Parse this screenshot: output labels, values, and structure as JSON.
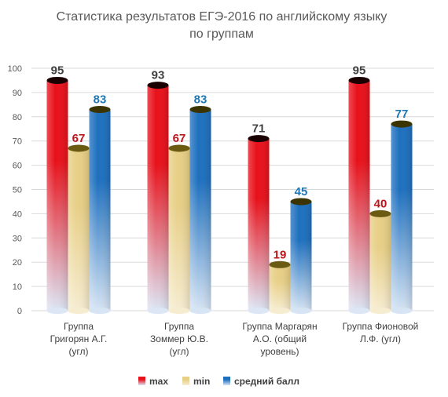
{
  "chart_data": {
    "type": "bar",
    "title": "Статистика результатов ЕГЭ-2016 по английскому языку по группам",
    "title_lines": [
      "Статистика результатов ЕГЭ-2016 по английскому языку",
      "по группам"
    ],
    "categories": [
      [
        "Группа",
        "Григорян А.Г.",
        "(угл)"
      ],
      [
        "Группа",
        "Зоммер Ю.В.",
        "(угл)"
      ],
      [
        "Группа Маргарян",
        "А.О. (общий",
        "уровень)"
      ],
      [
        "Группа Фионовой",
        "Л.Ф. (угл)"
      ]
    ],
    "series": [
      {
        "name": "max",
        "values": [
          95,
          93,
          71,
          95
        ],
        "color_top": "#e8101a",
        "color_bottom": "#dce6f5",
        "cap": "#1a0000",
        "label_color": "#404040"
      },
      {
        "name": "min",
        "values": [
          67,
          67,
          19,
          40
        ],
        "color_top": "#e8cf86",
        "color_bottom": "#f6ecd0",
        "cap": "#6b5a12",
        "label_color": "#c0141c"
      },
      {
        "name": "средний балл",
        "values": [
          83,
          83,
          45,
          77
        ],
        "color_top": "#1d6fbe",
        "color_bottom": "#d6e4f3",
        "cap": "#3b3300",
        "label_color": "#1f77b4"
      }
    ],
    "yticks": [
      0,
      10,
      20,
      30,
      40,
      50,
      60,
      70,
      80,
      90,
      100
    ],
    "ylim": [
      0,
      100
    ],
    "grid": true,
    "legend_position": "bottom"
  }
}
